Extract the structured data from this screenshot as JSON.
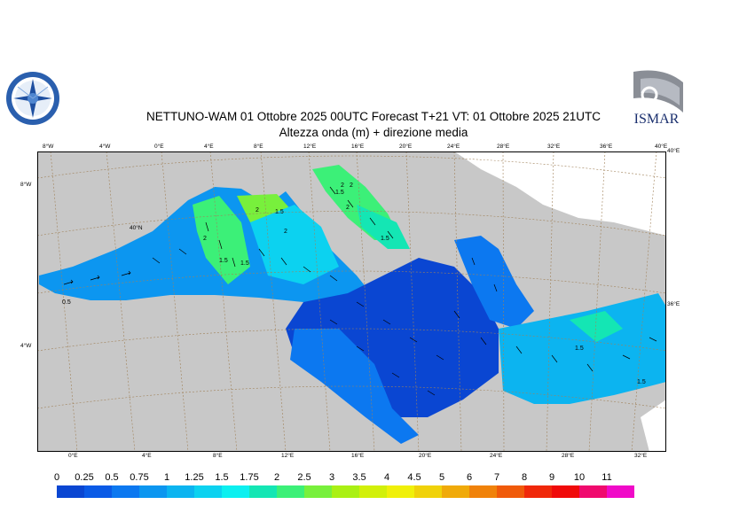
{
  "header": {
    "title": "NETTUNO-WAM  01  Ottobre  2025 00UTC Forecast T+21 VT: 01  Ottobre  2025 21UTC",
    "subtitle": "Altezza onda (m) + direzione media"
  },
  "logos": {
    "right_text": "ISMAR"
  },
  "map": {
    "top_lon_labels": [
      "8°W",
      "4°W",
      "0°E",
      "4°E",
      "8°E",
      "12°E",
      "16°E",
      "20°E",
      "24°E",
      "28°E",
      "32°E",
      "36°E",
      "40°E"
    ],
    "bottom_lon_labels": [
      "0°E",
      "4°E",
      "8°E",
      "12°E",
      "16°E",
      "20°E",
      "24°E",
      "28°E",
      "32°E"
    ],
    "left_lat_labels": [
      "8°W",
      "40°N",
      "4°W"
    ],
    "right_lat_labels": [
      "40°E",
      "36°E"
    ],
    "contour_labels": [
      "2",
      "1.5",
      "2",
      "2",
      "1.5",
      "2",
      "1.5",
      "2",
      "1.5",
      "1.5",
      "0.5",
      "1.5",
      "2",
      "1.5"
    ],
    "colors": {
      "land": "#c8c8c8",
      "land_white": "#ffffff",
      "graticule": "#a0825a",
      "arrows": "#000000"
    }
  },
  "colorbar": {
    "labels": [
      "0",
      "0.25",
      "0.5",
      "0.75",
      "1",
      "1.25",
      "1.5",
      "1.75",
      "2",
      "2.5",
      "3",
      "3.5",
      "4",
      "4.5",
      "5",
      "6",
      "7",
      "8",
      "9",
      "10",
      "11"
    ],
    "colors": [
      "#0a46d2",
      "#0a5ae6",
      "#0c78f0",
      "#0c96f0",
      "#0cb4f0",
      "#0cd2f0",
      "#0cf0f0",
      "#14e6b4",
      "#3cf078",
      "#78f03c",
      "#aaf014",
      "#d2f00a",
      "#f0f00a",
      "#f0d20a",
      "#f0aa0a",
      "#f0820a",
      "#f05a0a",
      "#f0280a",
      "#f00a0a",
      "#f00a6e",
      "#f00ac8"
    ]
  }
}
